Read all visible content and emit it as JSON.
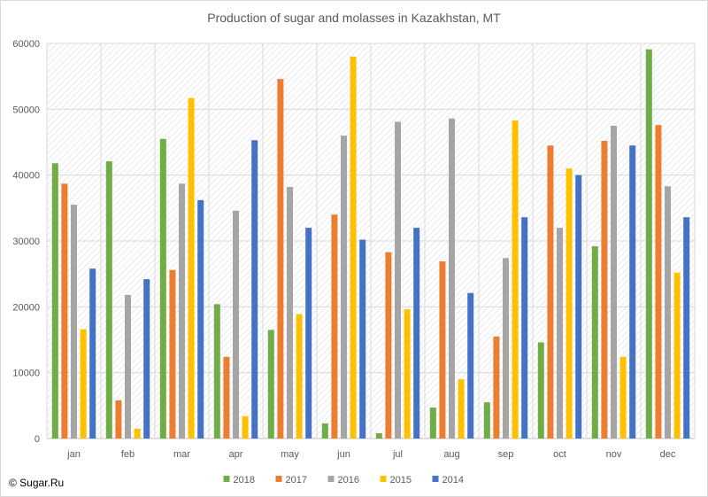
{
  "chart_data": {
    "type": "bar",
    "title": "Production of sugar and molasses in Kazakhstan, MT",
    "xlabel": "",
    "ylabel": "",
    "ylim": [
      0,
      60000
    ],
    "yticks": [
      0,
      10000,
      20000,
      30000,
      40000,
      50000,
      60000
    ],
    "categories": [
      "jan",
      "feb",
      "mar",
      "apr",
      "may",
      "jun",
      "jul",
      "aug",
      "sep",
      "oct",
      "nov",
      "dec"
    ],
    "grid": true,
    "legend_position": "bottom",
    "series": [
      {
        "name": "2018",
        "color": "#70ad47",
        "values": [
          41800,
          42100,
          45500,
          20400,
          16500,
          2300,
          800,
          4700,
          5500,
          14600,
          29200,
          59100
        ]
      },
      {
        "name": "2017",
        "color": "#ed7d31",
        "values": [
          38700,
          5800,
          25600,
          12400,
          54600,
          34000,
          28300,
          26900,
          15500,
          44500,
          45200,
          47600
        ]
      },
      {
        "name": "2016",
        "color": "#a5a5a5",
        "values": [
          35500,
          21800,
          38700,
          34600,
          38200,
          46000,
          48100,
          48600,
          27400,
          32000,
          47500,
          38300
        ]
      },
      {
        "name": "2015",
        "color": "#ffc000",
        "values": [
          16600,
          1500,
          51700,
          3400,
          18900,
          58000,
          19600,
          9000,
          48300,
          41000,
          12400,
          25200
        ]
      },
      {
        "name": "2014",
        "color": "#4472c4",
        "values": [
          25800,
          24200,
          36200,
          45300,
          32000,
          30200,
          32000,
          22100,
          33600,
          40000,
          44500,
          33600
        ]
      }
    ]
  },
  "copyright": "© Sugar.Ru"
}
